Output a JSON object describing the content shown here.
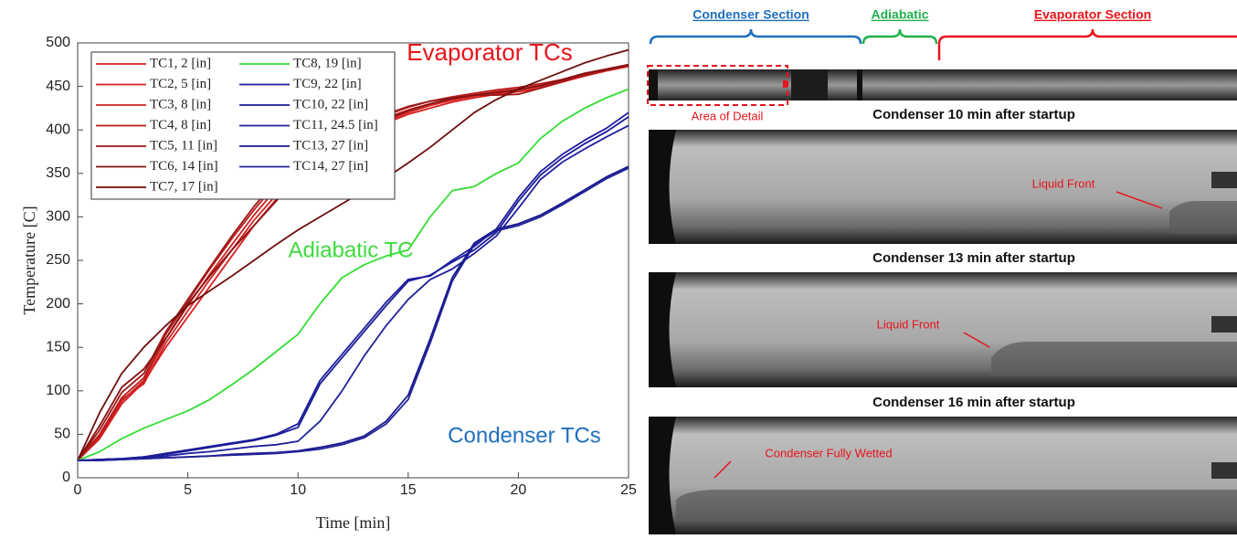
{
  "chart_data": {
    "type": "line",
    "xlabel": "Time [min]",
    "ylabel": "Temperature [C]",
    "xlim": [
      0,
      25
    ],
    "xticks": [
      0,
      5,
      10,
      15,
      20,
      25
    ],
    "ylim": [
      0,
      500
    ],
    "yticks": [
      0,
      50,
      100,
      150,
      200,
      250,
      300,
      350,
      400,
      450,
      500
    ],
    "legend": "upper left",
    "annotations": [
      {
        "text": "Evaporator TCs",
        "color": "#e8141b"
      },
      {
        "text": "Adiabatic TC",
        "color": "#3ddc3d"
      },
      {
        "text": "Condenser TCs",
        "color": "#1f6fc0"
      }
    ],
    "x": [
      0,
      1,
      2,
      3,
      4,
      5,
      6,
      7,
      8,
      9,
      10,
      11,
      12,
      13,
      14,
      15,
      16,
      17,
      18,
      19,
      20,
      21,
      22,
      23,
      24,
      25
    ],
    "series": [
      {
        "name": "TC1, 2 [in]",
        "color": "#d81e1e",
        "values": [
          20,
          45,
          85,
          110,
          150,
          185,
          220,
          255,
          290,
          320,
          345,
          368,
          385,
          398,
          408,
          418,
          425,
          432,
          437,
          441,
          444,
          448,
          455,
          462,
          468,
          473
        ]
      },
      {
        "name": "TC2, 5 [in]",
        "color": "#d42222",
        "values": [
          20,
          48,
          90,
          108,
          155,
          192,
          228,
          262,
          296,
          325,
          350,
          372,
          388,
          400,
          410,
          420,
          428,
          434,
          439,
          443,
          446,
          450,
          456,
          463,
          469,
          474
        ]
      },
      {
        "name": "TC3, 8 [in]",
        "color": "#cc2020",
        "values": [
          20,
          46,
          88,
          112,
          160,
          198,
          234,
          268,
          302,
          332,
          356,
          376,
          392,
          404,
          414,
          423,
          430,
          436,
          440,
          444,
          447,
          451,
          457,
          464,
          470,
          475
        ]
      },
      {
        "name": "TC4, 8 [in]",
        "color": "#b81a1a",
        "values": [
          20,
          50,
          92,
          115,
          165,
          203,
          240,
          275,
          308,
          338,
          362,
          381,
          396,
          407,
          417,
          426,
          433,
          438,
          442,
          446,
          449,
          453,
          458,
          465,
          470,
          474
        ]
      },
      {
        "name": "TC5, 11 [in]",
        "color": "#9e1616",
        "values": [
          20,
          55,
          98,
          120,
          168,
          205,
          242,
          278,
          312,
          342,
          365,
          384,
          398,
          409,
          418,
          427,
          433,
          437,
          440,
          440,
          441,
          448,
          456,
          463,
          469,
          474
        ]
      },
      {
        "name": "TC6, 14 [in]",
        "color": "#861212",
        "values": [
          20,
          60,
          104,
          125,
          160,
          200,
          232,
          262,
          290,
          318,
          345,
          368,
          386,
          400,
          412,
          422,
          430,
          436,
          440,
          443,
          446,
          451,
          458,
          465,
          470,
          475
        ]
      },
      {
        "name": "TC7, 17 [in]",
        "color": "#6e0e0e",
        "values": [
          20,
          75,
          120,
          150,
          175,
          198,
          215,
          232,
          250,
          268,
          285,
          300,
          315,
          330,
          345,
          362,
          380,
          400,
          420,
          435,
          447,
          457,
          467,
          477,
          485,
          492
        ]
      },
      {
        "name": "TC8, 19 [in]",
        "color": "#33dd33",
        "values": [
          20,
          30,
          45,
          57,
          67,
          77,
          90,
          107,
          125,
          145,
          165,
          200,
          230,
          245,
          255,
          262,
          300,
          330,
          335,
          350,
          362,
          390,
          410,
          425,
          437,
          447
        ]
      },
      {
        "name": "TC9, 22 [in]",
        "color": "#1c1ca0",
        "values": [
          20,
          21,
          22,
          24,
          28,
          32,
          36,
          40,
          44,
          50,
          62,
          112,
          142,
          172,
          202,
          228,
          232,
          250,
          266,
          286,
          322,
          352,
          372,
          388,
          402,
          420
        ]
      },
      {
        "name": "TC10, 22 [in]",
        "color": "#1a1a96",
        "values": [
          20,
          21,
          22,
          24,
          27,
          31,
          35,
          39,
          43,
          49,
          58,
          108,
          138,
          168,
          198,
          226,
          233,
          248,
          262,
          282,
          318,
          348,
          368,
          384,
          398,
          415
        ]
      },
      {
        "name": "TC11, 24.5 [in]",
        "color": "#20209c",
        "values": [
          20,
          21,
          22,
          23,
          25,
          28,
          30,
          33,
          36,
          38,
          42,
          65,
          100,
          140,
          175,
          205,
          228,
          240,
          258,
          278,
          310,
          343,
          363,
          378,
          392,
          405
        ]
      },
      {
        "name": "TC13, 27 [in]",
        "color": "#18188e",
        "values": [
          20,
          20,
          21,
          22,
          23,
          24,
          25,
          27,
          28,
          29,
          31,
          35,
          40,
          48,
          65,
          95,
          160,
          230,
          270,
          286,
          292,
          302,
          316,
          331,
          346,
          358
        ]
      },
      {
        "name": "TC14, 27 [in]",
        "color": "#222298",
        "values": [
          20,
          20,
          21,
          22,
          23,
          24,
          25,
          26,
          27,
          28,
          30,
          33,
          38,
          46,
          62,
          90,
          155,
          226,
          268,
          284,
          290,
          300,
          314,
          329,
          344,
          356
        ]
      }
    ]
  },
  "figure_panel": {
    "sections": [
      {
        "label": "Condenser Section",
        "color": "#1f6fc0"
      },
      {
        "label": "Adiabatic",
        "color": "#22b14c"
      },
      {
        "label": "Evaporator Section",
        "color": "#e8141b"
      }
    ],
    "detail_label": "Area of Detail",
    "frames": [
      {
        "title": "Condenser 10 min after startup",
        "annotation": "Liquid Front"
      },
      {
        "title": "Condenser 13 min after startup",
        "annotation": "Liquid Front"
      },
      {
        "title": "Condenser 16 min after startup",
        "annotation": "Condenser Fully Wetted"
      }
    ]
  }
}
